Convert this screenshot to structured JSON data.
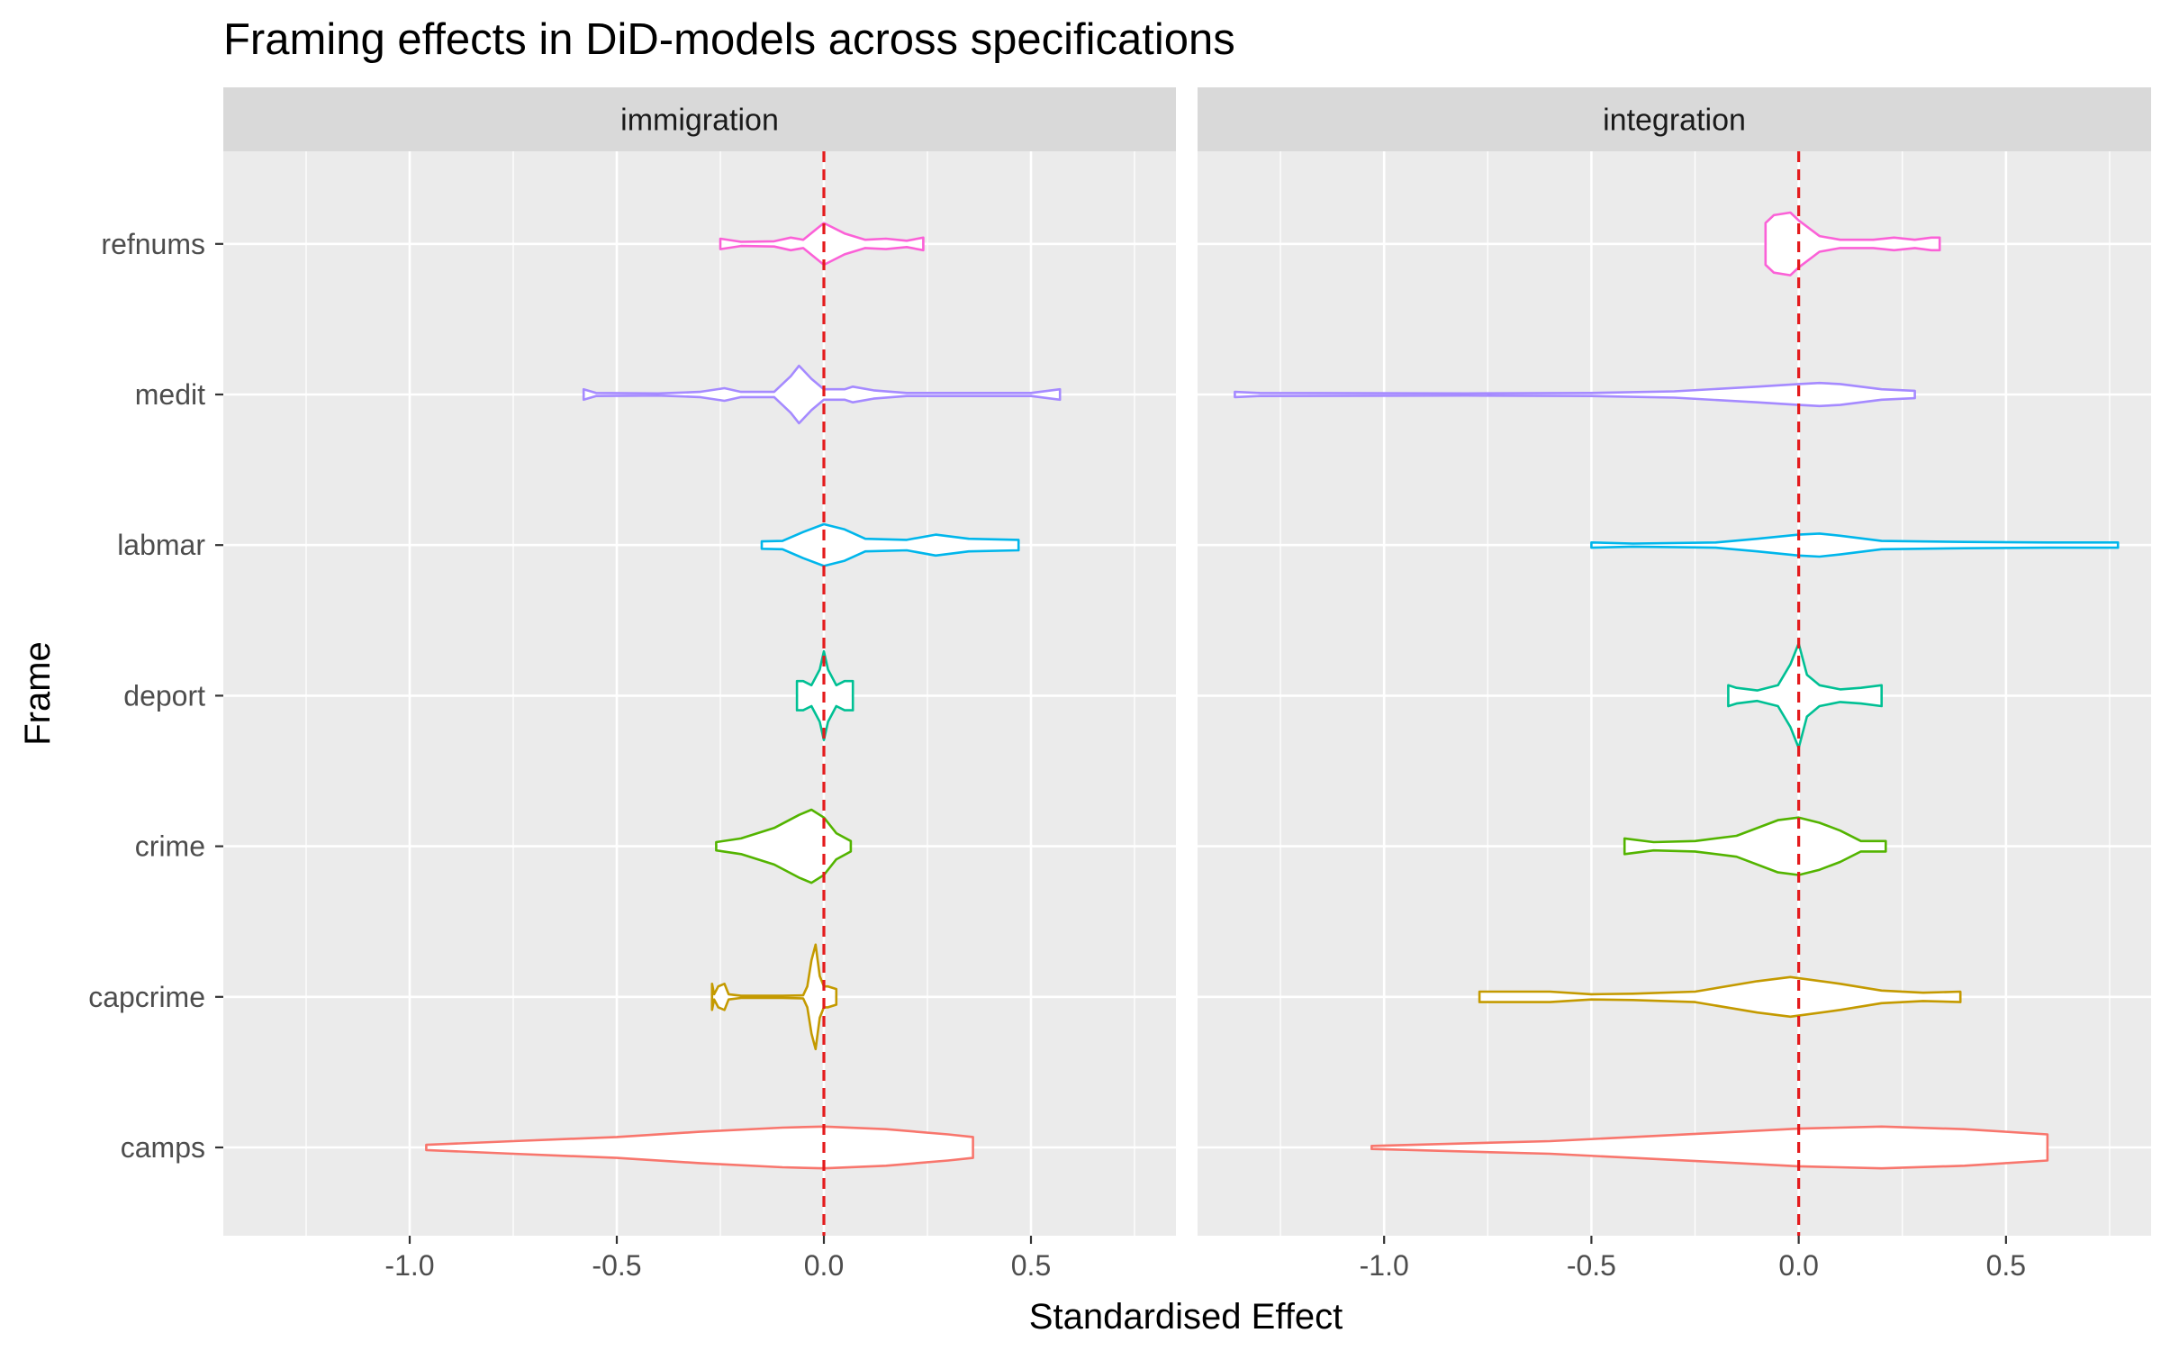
{
  "chart_data": {
    "type": "violin",
    "title": "Framing effects in DiD-models across specifications",
    "xlabel": "Standardised Effect",
    "ylabel": "Frame",
    "xlim": [
      -1.45,
      0.85
    ],
    "x_ticks": [
      "-1.0",
      "-0.5",
      "0.0",
      "0.5"
    ],
    "reference_line": {
      "x": 0,
      "color": "#E41A1C",
      "style": "dashed"
    },
    "grid": true,
    "legend": "none",
    "categories": [
      "camps",
      "capcrime",
      "crime",
      "deport",
      "labmar",
      "medit",
      "refnums"
    ],
    "colors": {
      "camps": "#F8766D",
      "capcrime": "#C49A00",
      "crime": "#53B400",
      "deport": "#00C094",
      "labmar": "#00B6EB",
      "medit": "#A58AFF",
      "refnums": "#FB61D7"
    },
    "panels": [
      {
        "name": "immigration",
        "violins": [
          {
            "frame": "camps",
            "points": [
              [
                -0.96,
                0.05
              ],
              [
                -0.75,
                0.12
              ],
              [
                -0.5,
                0.2
              ],
              [
                -0.3,
                0.3
              ],
              [
                -0.1,
                0.38
              ],
              [
                0.0,
                0.4
              ],
              [
                0.15,
                0.35
              ],
              [
                0.3,
                0.25
              ],
              [
                0.36,
                0.2
              ]
            ]
          },
          {
            "frame": "capcrime",
            "points": [
              [
                -0.27,
                0.25
              ],
              [
                -0.265,
                0.05
              ],
              [
                -0.255,
                0.2
              ],
              [
                -0.24,
                0.25
              ],
              [
                -0.23,
                0.05
              ],
              [
                -0.2,
                0.02
              ],
              [
                -0.1,
                0.02
              ],
              [
                -0.05,
                0.03
              ],
              [
                -0.04,
                0.2
              ],
              [
                -0.03,
                0.7
              ],
              [
                -0.02,
                1.0
              ],
              [
                -0.01,
                0.4
              ],
              [
                0.0,
                0.2
              ],
              [
                0.01,
                0.2
              ],
              [
                0.03,
                0.15
              ]
            ]
          },
          {
            "frame": "crime",
            "points": [
              [
                -0.26,
                0.08
              ],
              [
                -0.2,
                0.15
              ],
              [
                -0.12,
                0.35
              ],
              [
                -0.06,
                0.6
              ],
              [
                -0.03,
                0.7
              ],
              [
                0.0,
                0.55
              ],
              [
                0.03,
                0.25
              ],
              [
                0.065,
                0.1
              ]
            ]
          },
          {
            "frame": "deport",
            "points": [
              [
                -0.065,
                0.28
              ],
              [
                -0.05,
                0.28
              ],
              [
                -0.03,
                0.2
              ],
              [
                -0.01,
                0.5
              ],
              [
                0.0,
                0.85
              ],
              [
                0.01,
                0.5
              ],
              [
                0.03,
                0.2
              ],
              [
                0.05,
                0.28
              ],
              [
                0.07,
                0.28
              ]
            ]
          },
          {
            "frame": "labmar",
            "points": [
              [
                -0.15,
                0.07
              ],
              [
                -0.1,
                0.08
              ],
              [
                -0.05,
                0.25
              ],
              [
                0.0,
                0.4
              ],
              [
                0.05,
                0.3
              ],
              [
                0.1,
                0.12
              ],
              [
                0.2,
                0.1
              ],
              [
                0.27,
                0.2
              ],
              [
                0.35,
                0.12
              ],
              [
                0.47,
                0.1
              ]
            ]
          },
          {
            "frame": "medit",
            "points": [
              [
                -0.58,
                0.1
              ],
              [
                -0.55,
                0.03
              ],
              [
                -0.4,
                0.02
              ],
              [
                -0.3,
                0.05
              ],
              [
                -0.24,
                0.12
              ],
              [
                -0.2,
                0.05
              ],
              [
                -0.12,
                0.05
              ],
              [
                -0.08,
                0.35
              ],
              [
                -0.06,
                0.55
              ],
              [
                -0.03,
                0.3
              ],
              [
                0.0,
                0.1
              ],
              [
                0.05,
                0.1
              ],
              [
                0.07,
                0.15
              ],
              [
                0.12,
                0.08
              ],
              [
                0.2,
                0.03
              ],
              [
                0.5,
                0.03
              ],
              [
                0.57,
                0.1
              ]
            ]
          },
          {
            "frame": "refnums",
            "points": [
              [
                -0.25,
                0.1
              ],
              [
                -0.2,
                0.04
              ],
              [
                -0.12,
                0.05
              ],
              [
                -0.08,
                0.12
              ],
              [
                -0.05,
                0.08
              ],
              [
                0.0,
                0.4
              ],
              [
                0.05,
                0.2
              ],
              [
                0.1,
                0.08
              ],
              [
                0.15,
                0.1
              ],
              [
                0.2,
                0.06
              ],
              [
                0.24,
                0.12
              ]
            ]
          }
        ]
      },
      {
        "name": "integration",
        "violins": [
          {
            "frame": "camps",
            "points": [
              [
                -1.03,
                0.03
              ],
              [
                -0.8,
                0.08
              ],
              [
                -0.6,
                0.12
              ],
              [
                -0.4,
                0.2
              ],
              [
                -0.2,
                0.28
              ],
              [
                0.0,
                0.36
              ],
              [
                0.2,
                0.4
              ],
              [
                0.4,
                0.35
              ],
              [
                0.6,
                0.25
              ]
            ]
          },
          {
            "frame": "capcrime",
            "points": [
              [
                -0.77,
                0.1
              ],
              [
                -0.6,
                0.1
              ],
              [
                -0.5,
                0.05
              ],
              [
                -0.4,
                0.06
              ],
              [
                -0.25,
                0.1
              ],
              [
                -0.1,
                0.3
              ],
              [
                -0.02,
                0.38
              ],
              [
                0.1,
                0.25
              ],
              [
                0.2,
                0.12
              ],
              [
                0.3,
                0.08
              ],
              [
                0.39,
                0.1
              ]
            ]
          },
          {
            "frame": "crime",
            "points": [
              [
                -0.42,
                0.15
              ],
              [
                -0.35,
                0.08
              ],
              [
                -0.25,
                0.1
              ],
              [
                -0.15,
                0.2
              ],
              [
                -0.05,
                0.5
              ],
              [
                0.0,
                0.55
              ],
              [
                0.05,
                0.45
              ],
              [
                0.1,
                0.3
              ],
              [
                0.15,
                0.1
              ],
              [
                0.21,
                0.1
              ]
            ]
          },
          {
            "frame": "deport",
            "points": [
              [
                -0.17,
                0.2
              ],
              [
                -0.15,
                0.15
              ],
              [
                -0.1,
                0.1
              ],
              [
                -0.05,
                0.2
              ],
              [
                -0.02,
                0.6
              ],
              [
                0.0,
                1.0
              ],
              [
                0.02,
                0.4
              ],
              [
                0.05,
                0.2
              ],
              [
                0.1,
                0.12
              ],
              [
                0.15,
                0.15
              ],
              [
                0.2,
                0.2
              ]
            ]
          },
          {
            "frame": "labmar",
            "points": [
              [
                -0.5,
                0.05
              ],
              [
                -0.4,
                0.03
              ],
              [
                -0.2,
                0.05
              ],
              [
                -0.1,
                0.12
              ],
              [
                0.0,
                0.2
              ],
              [
                0.05,
                0.22
              ],
              [
                0.1,
                0.18
              ],
              [
                0.2,
                0.08
              ],
              [
                0.4,
                0.06
              ],
              [
                0.6,
                0.05
              ],
              [
                0.77,
                0.05
              ]
            ]
          },
          {
            "frame": "medit",
            "points": [
              [
                -1.36,
                0.05
              ],
              [
                -1.3,
                0.03
              ],
              [
                -0.8,
                0.02
              ],
              [
                -0.5,
                0.03
              ],
              [
                -0.3,
                0.06
              ],
              [
                -0.1,
                0.15
              ],
              [
                0.0,
                0.2
              ],
              [
                0.05,
                0.22
              ],
              [
                0.1,
                0.2
              ],
              [
                0.2,
                0.1
              ],
              [
                0.28,
                0.07
              ]
            ]
          },
          {
            "frame": "refnums",
            "points": [
              [
                -0.08,
                0.4
              ],
              [
                -0.06,
                0.55
              ],
              [
                -0.02,
                0.6
              ],
              [
                0.0,
                0.45
              ],
              [
                0.05,
                0.15
              ],
              [
                0.1,
                0.08
              ],
              [
                0.18,
                0.08
              ],
              [
                0.23,
                0.12
              ],
              [
                0.28,
                0.08
              ],
              [
                0.32,
                0.12
              ],
              [
                0.34,
                0.12
              ]
            ]
          }
        ]
      }
    ]
  }
}
